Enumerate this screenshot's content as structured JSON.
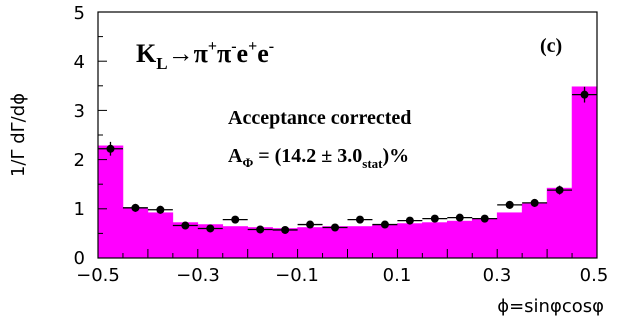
{
  "chart_data": {
    "type": "bar",
    "title": "",
    "xlabel": "ϕ=sinφcosφ",
    "ylabel": "1/Γ dΓ/dϕ",
    "xlim": [
      -0.5,
      0.5
    ],
    "ylim": [
      0,
      5
    ],
    "x_ticks": [
      "−0.5",
      "−0.3",
      "−0.1",
      "0.1",
      "0.3",
      "0.5"
    ],
    "y_ticks": [
      "0",
      "1",
      "2",
      "3",
      "4",
      "5"
    ],
    "grid": false,
    "bar_color": "#ff00ff",
    "bin_edges": [
      -0.5,
      -0.45,
      -0.4,
      -0.35,
      -0.3,
      -0.25,
      -0.2,
      -0.15,
      -0.1,
      -0.05,
      0.0,
      0.05,
      0.1,
      0.15,
      0.2,
      0.25,
      0.3,
      0.35,
      0.4,
      0.45,
      0.5
    ],
    "histogram_values": [
      2.28,
      1.0,
      0.92,
      0.72,
      0.68,
      0.64,
      0.62,
      0.6,
      0.62,
      0.64,
      0.64,
      0.68,
      0.7,
      0.72,
      0.75,
      0.8,
      0.92,
      1.1,
      1.42,
      3.48
    ],
    "data_points": {
      "x": [
        -0.475,
        -0.425,
        -0.375,
        -0.325,
        -0.275,
        -0.225,
        -0.175,
        -0.125,
        -0.075,
        -0.025,
        0.025,
        0.075,
        0.125,
        0.175,
        0.225,
        0.275,
        0.325,
        0.375,
        0.425,
        0.475
      ],
      "y": [
        2.22,
        1.02,
        0.98,
        0.66,
        0.6,
        0.78,
        0.58,
        0.57,
        0.68,
        0.62,
        0.78,
        0.68,
        0.76,
        0.8,
        0.82,
        0.8,
        1.08,
        1.12,
        1.38,
        3.32
      ],
      "yerr": [
        0.14,
        0.08,
        0.08,
        0.06,
        0.06,
        0.07,
        0.06,
        0.06,
        0.06,
        0.06,
        0.07,
        0.06,
        0.06,
        0.07,
        0.07,
        0.07,
        0.08,
        0.08,
        0.09,
        0.16
      ]
    },
    "annotations": {
      "process_K": "K",
      "process_K_sub": "L",
      "process_arrow": "→π",
      "process_pi1_sup": "+",
      "process_pi2": "π",
      "process_pi2_sup": "-",
      "process_e1": "e",
      "process_e1_sup": "+",
      "process_e2": "e",
      "process_e2_sup": "-",
      "panel": "(c)",
      "line1": "Acceptance corrected",
      "line2_A": "A",
      "line2_A_sub": "Φ",
      "line2_mid": " = (14.2 ± 3.0",
      "line2_stat_sub": "stat",
      "line2_end": ")%"
    }
  }
}
